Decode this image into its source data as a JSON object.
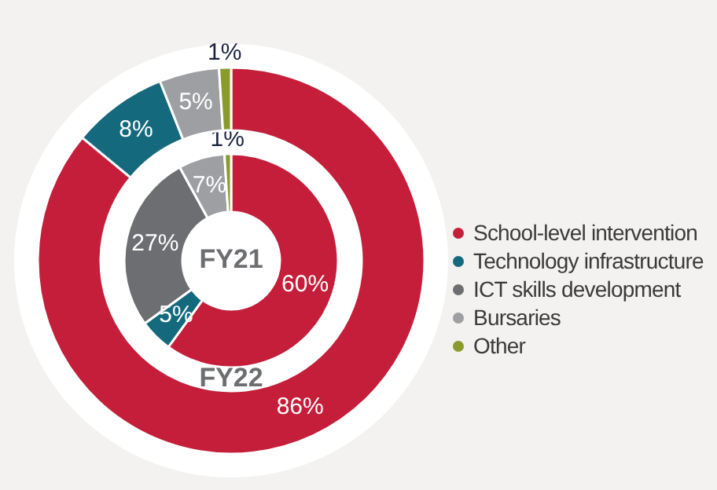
{
  "chart_data": {
    "type": "donut",
    "categories": [
      "School-level intervention",
      "Technology infrastructure",
      "ICT skills development",
      "Bursaries",
      "Other"
    ],
    "colors": [
      "#c41e3a",
      "#146a7c",
      "#6d6e71",
      "#9d9fa2",
      "#8a9a2c"
    ],
    "series": [
      {
        "name": "FY21",
        "values": [
          60,
          5,
          27,
          7,
          1
        ],
        "value_labels": [
          "60%",
          "5%",
          "27%",
          "7%",
          "1%"
        ]
      },
      {
        "name": "FY22",
        "values": [
          86,
          8,
          0,
          5,
          1
        ],
        "value_labels": [
          "86%",
          "8%",
          null,
          "5%",
          "1%"
        ]
      }
    ],
    "legend": "right"
  }
}
